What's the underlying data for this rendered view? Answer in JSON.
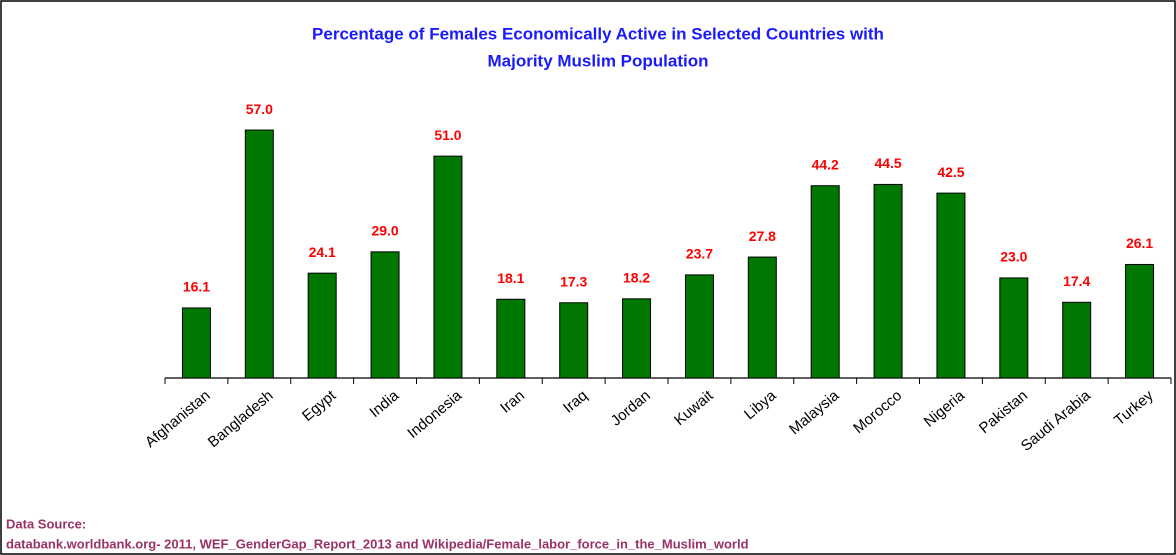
{
  "chart_data": {
    "type": "bar",
    "title": [
      "Percentage of Females Economically Active in Selected Countries with",
      "Majority Muslim Population"
    ],
    "categories": [
      "Afghanistan",
      "Bangladesh",
      "Egypt",
      "India",
      "Indonesia",
      "Iran",
      "Iraq",
      "Jordan",
      "Kuwait",
      "Libya",
      "Malaysia",
      "Morocco",
      "Nigeria",
      "Pakistan",
      "Saudi Arabia",
      "Turkey"
    ],
    "values": [
      16.1,
      57,
      24.1,
      29,
      51,
      18.1,
      17.3,
      18.2,
      23.7,
      27.8,
      44.2,
      44.5,
      42.5,
      23,
      17.4,
      26.1
    ],
    "value_labels": [
      "16.1",
      "57.0",
      "24.1",
      "29.0",
      "51.0",
      "18.1",
      "17.3",
      "18.2",
      "23.7",
      "27.8",
      "44.2",
      "44.5",
      "42.5",
      "23.0",
      "17.4",
      "26.1"
    ],
    "color": "#007700",
    "source_label": "Data Source:",
    "source": "databank.worldbank.org- 2011, WEF_GenderGap_Report_2013  and Wikipedia/Female_labor_force_in_the_Muslim_world"
  }
}
